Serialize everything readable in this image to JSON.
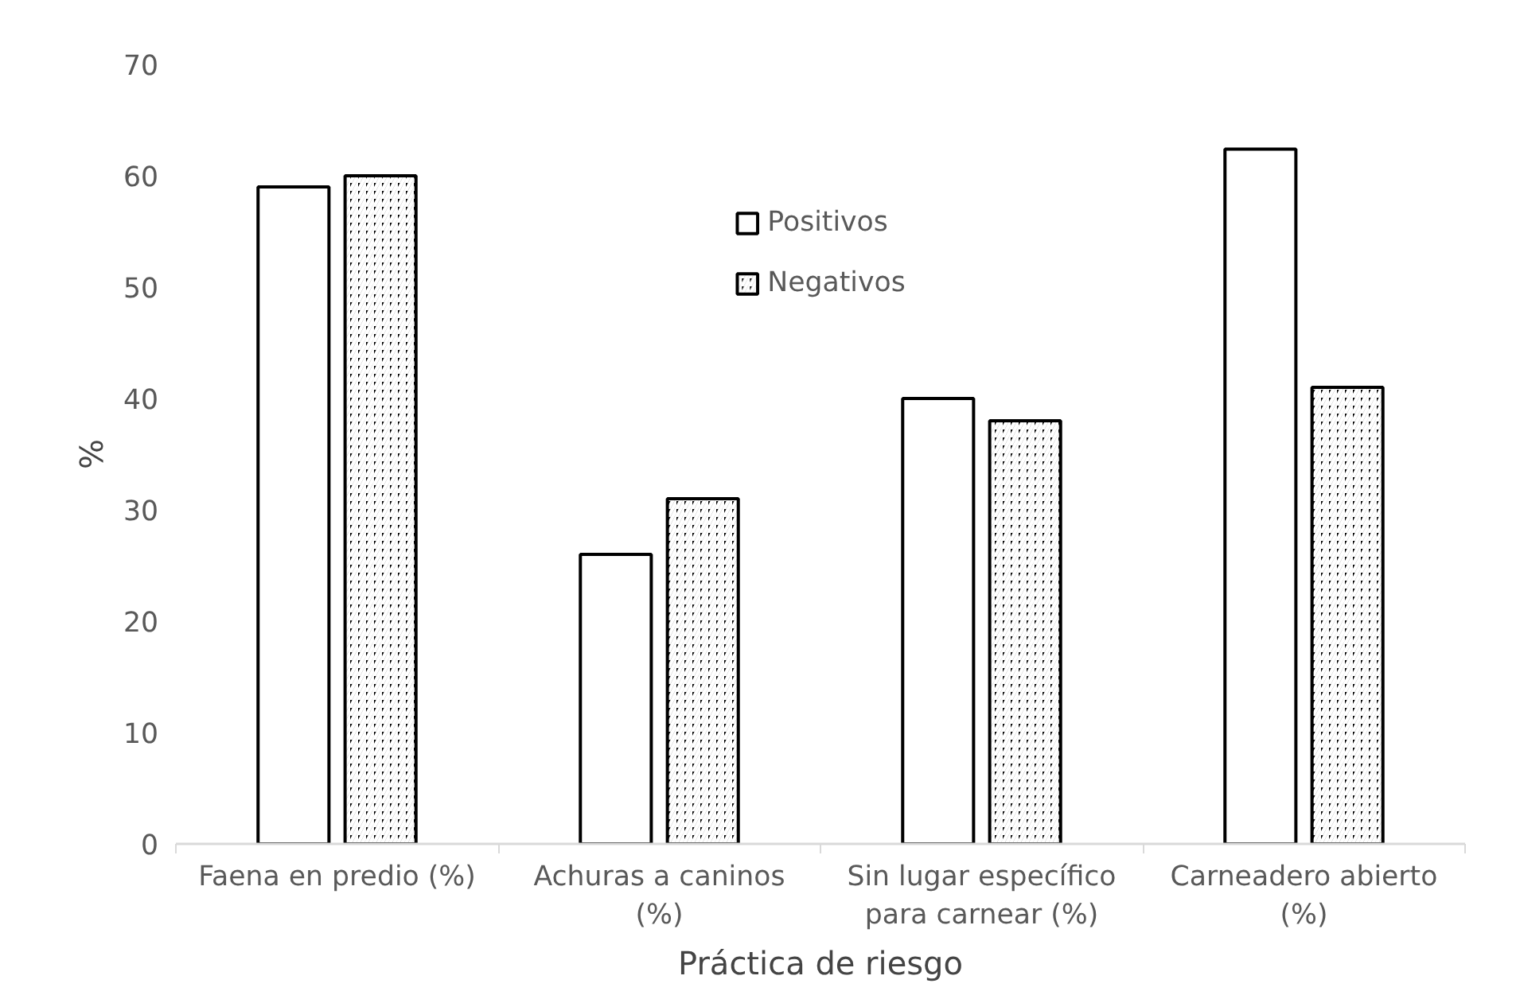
{
  "chart_data": {
    "type": "bar",
    "xlabel": "Práctica de riesgo",
    "ylabel": "%",
    "categories": [
      "Faena en predio (%)",
      "Achuras a caninos (%)",
      "Sin lugar específico para carnear (%)",
      "Carneadero abierto (%)"
    ],
    "series": [
      {
        "name": "Positivos",
        "color": "#ffffff",
        "values": [
          59,
          26,
          40,
          62.4
        ]
      },
      {
        "name": "Negativos",
        "color": "#000000",
        "values": [
          60,
          31,
          38,
          41
        ]
      }
    ],
    "ylim": [
      0,
      70
    ],
    "yticks": [
      0,
      10,
      20,
      30,
      40,
      50,
      60,
      70
    ],
    "grid": false,
    "legend": "top"
  }
}
